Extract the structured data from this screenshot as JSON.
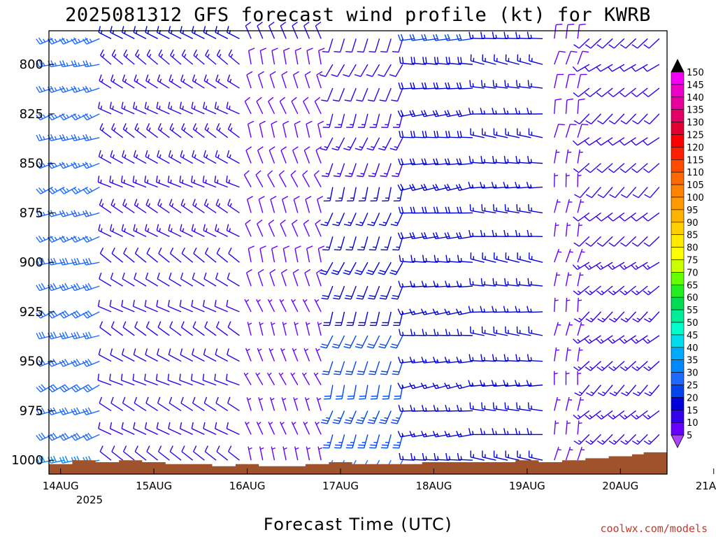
{
  "chart_data": {
    "type": "wind-barb profile",
    "title": "2025081312 GFS forecast wind profile (kt) for KWRB",
    "xlabel": "Forecast Time (UTC)",
    "x_ticks": [
      "14AUG",
      "15AUG",
      "16AUG",
      "17AUG",
      "18AUG",
      "19AUG",
      "20AUG",
      "21AUG"
    ],
    "x_year_label": "2025",
    "xlim_hours": [
      9,
      168
    ],
    "y_axis": "pressure (hPa)",
    "y_ticks": [
      "800",
      "825",
      "850",
      "875",
      "900",
      "925",
      "950",
      "975",
      "1000"
    ],
    "ylim": [
      1007,
      783
    ],
    "barb_interval_hours": 3,
    "pressure_levels": [
      787,
      800,
      812,
      825,
      837,
      850,
      862,
      875,
      887,
      900,
      912,
      925,
      937,
      950,
      962,
      975,
      987,
      1000
    ],
    "wind_field": [
      {
        "from_hour": 9,
        "to_hour": 24,
        "direction_deg": 250,
        "speed_lower_kt": 30,
        "speed_upper_kt": 25
      },
      {
        "from_hour": 24,
        "to_hour": 60,
        "direction_deg": 300,
        "speed_lower_kt": 10,
        "speed_upper_kt": 15
      },
      {
        "from_hour": 60,
        "to_hour": 81,
        "direction_deg": 340,
        "speed_lower_kt": 6,
        "speed_upper_kt": 10
      },
      {
        "from_hour": 81,
        "to_hour": 102,
        "direction_deg": 200,
        "speed_lower_kt": 25,
        "speed_upper_kt": 10
      },
      {
        "from_hour": 102,
        "to_hour": 120,
        "direction_deg": 265,
        "speed_lower_kt": 15,
        "speed_upper_kt": 20
      },
      {
        "from_hour": 120,
        "to_hour": 138,
        "direction_deg": 275,
        "speed_lower_kt": 15,
        "speed_upper_kt": 15
      },
      {
        "from_hour": 138,
        "to_hour": 147,
        "direction_deg": 10,
        "speed_lower_kt": 6,
        "speed_upper_kt": 8
      },
      {
        "from_hour": 147,
        "to_hour": 168,
        "direction_deg": 230,
        "speed_lower_kt": 15,
        "speed_upper_kt": 10
      }
    ],
    "surface_pressure": [
      [
        9,
        1002
      ],
      [
        15,
        1000
      ],
      [
        21,
        1001
      ],
      [
        27,
        1000
      ],
      [
        33,
        1001
      ],
      [
        39,
        1002
      ],
      [
        45,
        1002
      ],
      [
        51,
        1003
      ],
      [
        57,
        1002
      ],
      [
        63,
        1003
      ],
      [
        69,
        1003
      ],
      [
        75,
        1002
      ],
      [
        81,
        1001
      ],
      [
        87,
        1002
      ],
      [
        93,
        1002
      ],
      [
        99,
        1002
      ],
      [
        105,
        1001
      ],
      [
        111,
        1001
      ],
      [
        117,
        1001
      ],
      [
        123,
        1001
      ],
      [
        129,
        1000
      ],
      [
        135,
        1001
      ],
      [
        141,
        1000
      ],
      [
        147,
        999
      ],
      [
        153,
        998
      ],
      [
        159,
        997
      ],
      [
        162,
        996
      ],
      [
        168,
        995
      ]
    ],
    "colorbar": {
      "units": "kt",
      "labels": [
        "150",
        "145",
        "140",
        "135",
        "130",
        "125",
        "120",
        "115",
        "110",
        "105",
        "100",
        "95",
        "90",
        "85",
        "80",
        "75",
        "70",
        "65",
        "60",
        "55",
        "50",
        "45",
        "40",
        "35",
        "30",
        "25",
        "20",
        "15",
        "10",
        "5"
      ],
      "colors": [
        "#f400f4",
        "#ee00c8",
        "#e8009a",
        "#e40066",
        "#e30030",
        "#ff0000",
        "#ff1f00",
        "#ff4a00",
        "#ff6a00",
        "#ff8200",
        "#ff9a00",
        "#ffb400",
        "#ffd000",
        "#ffea00",
        "#ffff00",
        "#ccff00",
        "#66ff00",
        "#22ee22",
        "#00dd55",
        "#00ee99",
        "#00ffcc",
        "#00ddee",
        "#00aaff",
        "#0088ff",
        "#1e6aff",
        "#0044ee",
        "#0000dd",
        "#3300ee",
        "#6600ff",
        "#9933ff"
      ],
      "top_arrow_color": "#000000",
      "bottom_arrow_color": "#aa44ff"
    },
    "colors": {
      "ground": "#a0522d",
      "frame": "#000000"
    }
  },
  "credit": "coolwx.com/models"
}
